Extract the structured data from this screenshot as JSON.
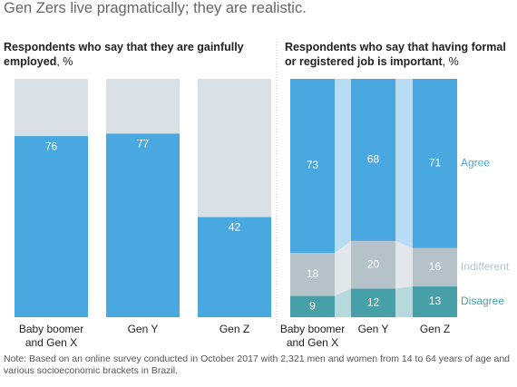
{
  "title": "Gen Zers live pragmatically; they are realistic.",
  "chart_data": [
    {
      "type": "bar",
      "subtitle": "Respondents who say that they are gainfully employed",
      "unit": ", %",
      "categories": [
        "Baby boomer and Gen X",
        "Gen Y",
        "Gen Z"
      ],
      "values": [
        76,
        77,
        42
      ],
      "color": "#4aa8e0",
      "background_color": "#d8dfe5",
      "ylim": [
        0,
        100
      ]
    },
    {
      "type": "stacked_bar",
      "subtitle": "Respondents who say that having formal or registered job is important",
      "unit": ", %",
      "categories": [
        "Baby boomer and Gen X",
        "Gen Y",
        "Gen Z"
      ],
      "series": [
        {
          "name": "Disagree",
          "color": "#47a0a8",
          "values": [
            9,
            12,
            13
          ]
        },
        {
          "name": "Indifferent",
          "color": "#b5c2ca",
          "values": [
            18,
            20,
            16
          ]
        },
        {
          "name": "Agree",
          "color": "#4aa8e0",
          "values": [
            73,
            68,
            71
          ]
        }
      ],
      "ylim": [
        0,
        100
      ]
    }
  ],
  "note": "Note: Based on an online survey conducted in October 2017 with 2,321 men and women from 14 to 64 years of age and various socioeconomic brackets in Brazil."
}
